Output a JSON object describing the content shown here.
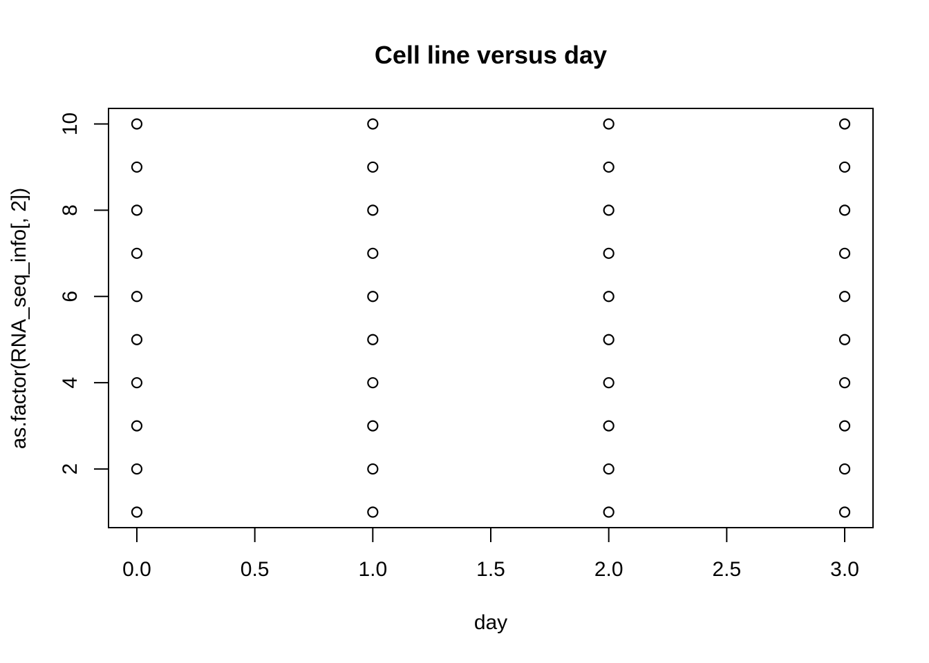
{
  "chart_data": {
    "type": "scatter",
    "title": "Cell line versus day",
    "xlabel": "day",
    "ylabel": "as.factor(RNA_seq_info[, 2])",
    "xlim": [
      -0.12,
      3.12
    ],
    "ylim": [
      0.64,
      10.36
    ],
    "x_ticks": [
      0.0,
      0.5,
      1.0,
      1.5,
      2.0,
      2.5,
      3.0
    ],
    "x_tick_labels": [
      "0.0",
      "0.5",
      "1.0",
      "1.5",
      "2.0",
      "2.5",
      "3.0"
    ],
    "y_ticks": [
      2,
      4,
      6,
      8,
      10
    ],
    "y_tick_labels": [
      "2",
      "4",
      "6",
      "8",
      "10"
    ],
    "marker": "open-circle",
    "grid": false,
    "legend": "none",
    "points": [
      {
        "x": 0,
        "y": 1
      },
      {
        "x": 0,
        "y": 2
      },
      {
        "x": 0,
        "y": 3
      },
      {
        "x": 0,
        "y": 4
      },
      {
        "x": 0,
        "y": 5
      },
      {
        "x": 0,
        "y": 6
      },
      {
        "x": 0,
        "y": 7
      },
      {
        "x": 0,
        "y": 8
      },
      {
        "x": 0,
        "y": 9
      },
      {
        "x": 0,
        "y": 10
      },
      {
        "x": 1,
        "y": 1
      },
      {
        "x": 1,
        "y": 2
      },
      {
        "x": 1,
        "y": 3
      },
      {
        "x": 1,
        "y": 4
      },
      {
        "x": 1,
        "y": 5
      },
      {
        "x": 1,
        "y": 6
      },
      {
        "x": 1,
        "y": 7
      },
      {
        "x": 1,
        "y": 8
      },
      {
        "x": 1,
        "y": 9
      },
      {
        "x": 1,
        "y": 10
      },
      {
        "x": 2,
        "y": 1
      },
      {
        "x": 2,
        "y": 2
      },
      {
        "x": 2,
        "y": 3
      },
      {
        "x": 2,
        "y": 4
      },
      {
        "x": 2,
        "y": 5
      },
      {
        "x": 2,
        "y": 6
      },
      {
        "x": 2,
        "y": 7
      },
      {
        "x": 2,
        "y": 8
      },
      {
        "x": 2,
        "y": 9
      },
      {
        "x": 2,
        "y": 10
      },
      {
        "x": 3,
        "y": 1
      },
      {
        "x": 3,
        "y": 2
      },
      {
        "x": 3,
        "y": 3
      },
      {
        "x": 3,
        "y": 4
      },
      {
        "x": 3,
        "y": 5
      },
      {
        "x": 3,
        "y": 6
      },
      {
        "x": 3,
        "y": 7
      },
      {
        "x": 3,
        "y": 8
      },
      {
        "x": 3,
        "y": 9
      },
      {
        "x": 3,
        "y": 10
      }
    ]
  }
}
